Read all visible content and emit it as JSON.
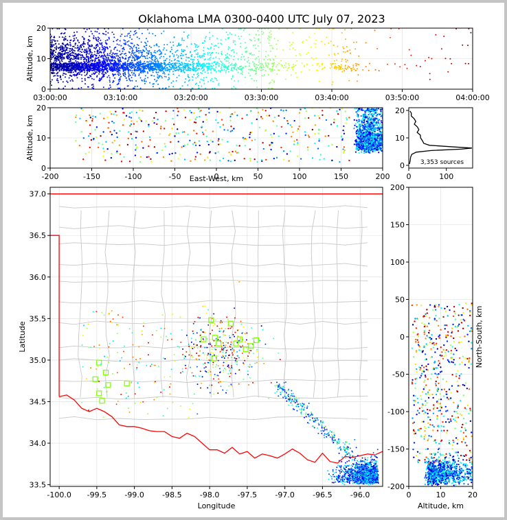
{
  "title": "Oklahoma LMA 0300-0400 UTC July 07, 2023",
  "colors": {
    "state_border": "#ff0000",
    "county_lines": "#c8c8c8",
    "station_marker": "#7fff00",
    "colormap": [
      "#00008f",
      "#0000ff",
      "#007fff",
      "#00ffff",
      "#7fff7f",
      "#ffff00",
      "#ff7f00",
      "#ff0000",
      "#7f0000"
    ]
  },
  "chart_data": [
    {
      "id": "time-height",
      "type": "scatter",
      "xlabel": "",
      "ylabel": "Altitude, km",
      "x_ticks": [
        "03:00:00",
        "03:10:00",
        "03:20:00",
        "03:30:00",
        "03:40:00",
        "03:50:00",
        "04:00:00"
      ],
      "xlim": [
        "03:00:00",
        "04:00:00"
      ],
      "ylim": [
        0,
        20
      ],
      "y_ticks": [
        0,
        10,
        20
      ],
      "color_by": "time",
      "grid": true,
      "density": [
        {
          "t0": 0,
          "t1": 8,
          "n": 1300,
          "alt_mean": 10,
          "alt_sd": 4
        },
        {
          "t0": 8,
          "t1": 16,
          "n": 900,
          "alt_mean": 9,
          "alt_sd": 4
        },
        {
          "t0": 16,
          "t1": 24,
          "n": 500,
          "alt_mean": 9,
          "alt_sd": 4.5
        },
        {
          "t0": 24,
          "t1": 32,
          "n": 300,
          "alt_mean": 11,
          "alt_sd": 5
        },
        {
          "t0": 32,
          "t1": 40,
          "n": 100,
          "alt_mean": 11,
          "alt_sd": 5
        },
        {
          "t0": 40,
          "t1": 44,
          "n": 90,
          "alt_mean": 11,
          "alt_sd": 5
        },
        {
          "t0": 44,
          "t1": 60,
          "n": 40,
          "alt_mean": 12,
          "alt_sd": 5
        }
      ]
    },
    {
      "id": "east-west-altitude",
      "type": "scatter",
      "xlabel": "East-West, km",
      "ylabel": "Altitude, km",
      "xlim": [
        -200,
        200
      ],
      "x_ticks": [
        -200,
        -150,
        -100,
        -50,
        0,
        50,
        100,
        150,
        200
      ],
      "ylim": [
        0,
        20
      ],
      "y_ticks": [
        0,
        10,
        20
      ],
      "grid": true
    },
    {
      "id": "altitude-histogram",
      "type": "line",
      "xlim": [
        0,
        170
      ],
      "x_ticks": [
        0,
        100
      ],
      "ylim": [
        0,
        20
      ],
      "y_ticks": [
        0,
        10,
        20
      ],
      "annotation": "3,353 sources",
      "profile": [
        {
          "alt": 0.5,
          "count": 2
        },
        {
          "alt": 2,
          "count": 4
        },
        {
          "alt": 3,
          "count": 5
        },
        {
          "alt": 4,
          "count": 8
        },
        {
          "alt": 4.8,
          "count": 20
        },
        {
          "alt": 5.4,
          "count": 60
        },
        {
          "alt": 5.9,
          "count": 140
        },
        {
          "alt": 6.3,
          "count": 168
        },
        {
          "alt": 6.8,
          "count": 110
        },
        {
          "alt": 7.3,
          "count": 55
        },
        {
          "alt": 8,
          "count": 40
        },
        {
          "alt": 9,
          "count": 38
        },
        {
          "alt": 10,
          "count": 30
        },
        {
          "alt": 11,
          "count": 28
        },
        {
          "alt": 12,
          "count": 25
        },
        {
          "alt": 13,
          "count": 24
        },
        {
          "alt": 14,
          "count": 20
        },
        {
          "alt": 15,
          "count": 15
        },
        {
          "alt": 16,
          "count": 18
        },
        {
          "alt": 17,
          "count": 12
        },
        {
          "alt": 18,
          "count": 8
        },
        {
          "alt": 19,
          "count": 6
        },
        {
          "alt": 19.8,
          "count": 3
        }
      ]
    },
    {
      "id": "plan-view",
      "type": "scatter",
      "xlabel": "Longitude",
      "ylabel": "Latitude",
      "xlim": [
        -100.12,
        -95.7
      ],
      "x_ticks": [
        "-100.0",
        "-99.5",
        "-99.0",
        "-98.5",
        "-98.0",
        "-97.5",
        "-97.0",
        "-96.5",
        "-96.0"
      ],
      "ylim": [
        33.48,
        37.08
      ],
      "y_ticks": [
        "33.5",
        "34.0",
        "34.5",
        "35.0",
        "35.5",
        "36.0",
        "36.5",
        "37.0"
      ],
      "grid": true,
      "stations": [
        [
          -99.47,
          34.97
        ],
        [
          -99.38,
          34.85
        ],
        [
          -99.52,
          34.77
        ],
        [
          -99.35,
          34.7
        ],
        [
          -99.47,
          34.6
        ],
        [
          -99.43,
          34.51
        ],
        [
          -99.1,
          34.72
        ],
        [
          -97.98,
          35.48
        ],
        [
          -98.08,
          35.25
        ],
        [
          -97.93,
          35.27
        ],
        [
          -97.88,
          35.2
        ],
        [
          -97.72,
          35.44
        ],
        [
          -97.6,
          35.25
        ],
        [
          -97.45,
          35.17
        ],
        [
          -97.38,
          35.24
        ],
        [
          -97.52,
          35.13
        ],
        [
          -97.94,
          35.02
        ],
        [
          -97.65,
          35.2
        ]
      ]
    },
    {
      "id": "altitude-north-south",
      "type": "scatter",
      "xlabel": "Altitude, km",
      "ylabel": "North-South, km",
      "xlim": [
        0,
        20
      ],
      "x_ticks": [
        0,
        10,
        20
      ],
      "ylim": [
        -200,
        200
      ],
      "y_ticks": [
        -200,
        -150,
        -100,
        -50,
        0,
        50,
        100,
        150,
        200
      ],
      "grid": true
    }
  ]
}
